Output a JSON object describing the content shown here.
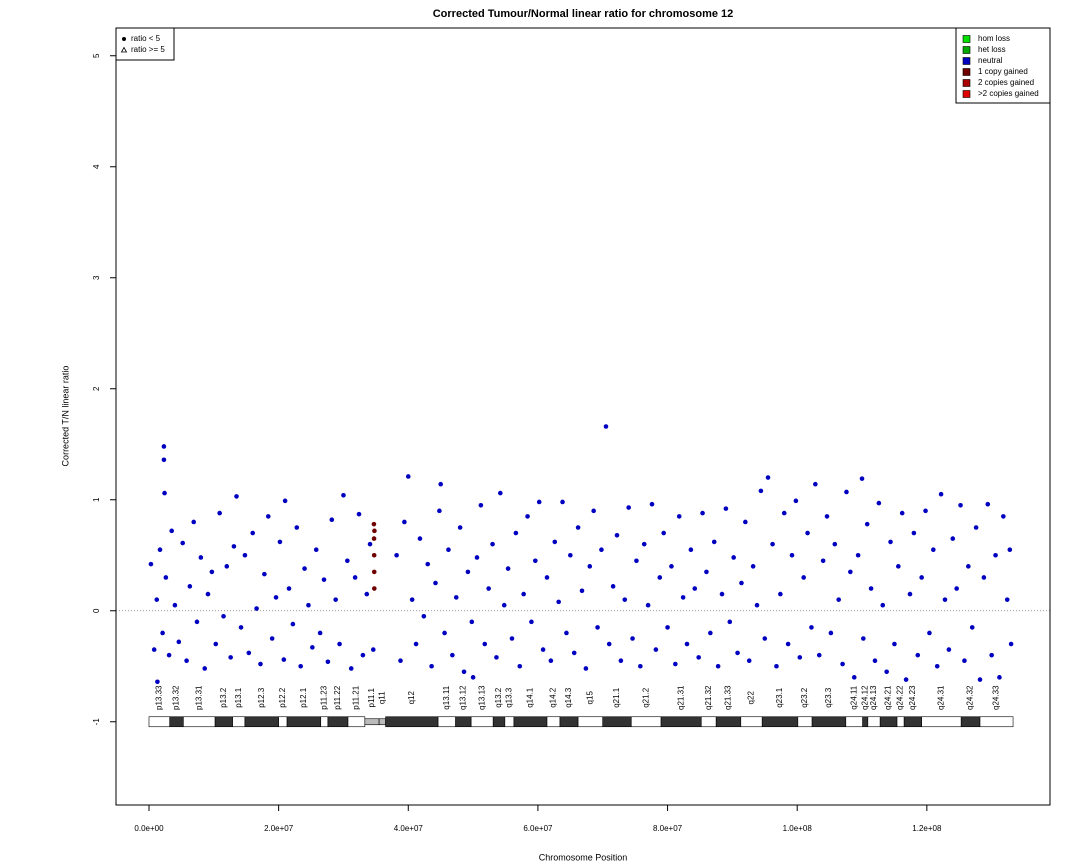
{
  "chart_data": {
    "type": "scatter",
    "title": "Corrected Tumour/Normal linear ratio for chromosome  12",
    "x_label": "Chromosome Position",
    "y_label": "Corrected T/N linear ratio",
    "xlim": [
      -5090000.0,
      139000000.0
    ],
    "ylim": [
      -1.75,
      5.25
    ],
    "xticks": [
      {
        "value": 0,
        "label": "0.0e+00"
      },
      {
        "value": 20000000.0,
        "label": "2.0e+07"
      },
      {
        "value": 40000000.0,
        "label": "4.0e+07"
      },
      {
        "value": 60000000.0,
        "label": "6.0e+07"
      },
      {
        "value": 80000000.0,
        "label": "8.0e+07"
      },
      {
        "value": 100000000.0,
        "label": "1.0e+08"
      },
      {
        "value": 120000000.0,
        "label": "1.2e+08"
      }
    ],
    "yticks": [
      -1,
      0,
      1,
      2,
      3,
      4,
      5
    ],
    "hline": 0,
    "shape_legend": [
      "ratio < 5",
      "ratio >= 5"
    ],
    "series": [
      {
        "name": "hom loss",
        "color": "#00e000",
        "x": [],
        "values": []
      },
      {
        "name": "het loss",
        "color": "#00a800",
        "x": [],
        "values": []
      },
      {
        "name": "neutral",
        "color": "#0000c0",
        "x": [
          300000.0,
          800000.0,
          1200000.0,
          1300000.0,
          1700000.0,
          2100000.0,
          2300000.0,
          2300000.0,
          2400000.0,
          2600000.0,
          3100000.0,
          3500000.0,
          4000000.0,
          4600000.0,
          5200000.0,
          5800000.0,
          6300000.0,
          6900000.0,
          7400000.0,
          8000000.0,
          8600000.0,
          9100000.0,
          9700000.0,
          10300000.0,
          10900000.0,
          11500000.0,
          12000000.0,
          12600000.0,
          13100000.0,
          13500000.0,
          14200000.0,
          14800000.0,
          15400000.0,
          16000000.0,
          16600000.0,
          17200000.0,
          17800000.0,
          18400000.0,
          19000000.0,
          19600000.0,
          20200000.0,
          20800000.0,
          21000000.0,
          21600000.0,
          22200000.0,
          22800000.0,
          23400000.0,
          24000000.0,
          24600000.0,
          25200000.0,
          25800000.0,
          26400000.0,
          27000000.0,
          27600000.0,
          28200000.0,
          28800000.0,
          29400000.0,
          30000000.0,
          30600000.0,
          31200000.0,
          31800000.0,
          32400000.0,
          33000000.0,
          33600000.0,
          34100000.0,
          34600000.0,
          38200000.0,
          38800000.0,
          39400000.0,
          40000000.0,
          40600000.0,
          41200000.0,
          41800000.0,
          42400000.0,
          43000000.0,
          43600000.0,
          44200000.0,
          44800000.0,
          45000000.0,
          45600000.0,
          46200000.0,
          46800000.0,
          47400000.0,
          48000000.0,
          48600000.0,
          49200000.0,
          49800000.0,
          50000000.0,
          50600000.0,
          51200000.0,
          51800000.0,
          52400000.0,
          53000000.0,
          53600000.0,
          54200000.0,
          54800000.0,
          55400000.0,
          56000000.0,
          56600000.0,
          57200000.0,
          57800000.0,
          58400000.0,
          59000000.0,
          59600000.0,
          60200000.0,
          60800000.0,
          61400000.0,
          62000000.0,
          62600000.0,
          63200000.0,
          63800000.0,
          64400000.0,
          65000000.0,
          65600000.0,
          66200000.0,
          66800000.0,
          67400000.0,
          68000000.0,
          68600000.0,
          69200000.0,
          69800000.0,
          70500000.0,
          71000000.0,
          71600000.0,
          72200000.0,
          72800000.0,
          73400000.0,
          74000000.0,
          74600000.0,
          75200000.0,
          75800000.0,
          76400000.0,
          77000000.0,
          77600000.0,
          78200000.0,
          78800000.0,
          79400000.0,
          80000000.0,
          80600000.0,
          81200000.0,
          81800000.0,
          82400000.0,
          83000000.0,
          83600000.0,
          84200000.0,
          84800000.0,
          85400000.0,
          86000000.0,
          86600000.0,
          87200000.0,
          87800000.0,
          88400000.0,
          89000000.0,
          89600000.0,
          90200000.0,
          90800000.0,
          91400000.0,
          92000000.0,
          92600000.0,
          93200000.0,
          93800000.0,
          94400000.0,
          95000000.0,
          95500000.0,
          96200000.0,
          96800000.0,
          97400000.0,
          98000000.0,
          98600000.0,
          99200000.0,
          99800000.0,
          100400000.0,
          101000000.0,
          101600000.0,
          102200000.0,
          102800000.0,
          103400000.0,
          104000000.0,
          104600000.0,
          105200000.0,
          105800000.0,
          106400000.0,
          107000000.0,
          107600000.0,
          108200000.0,
          108800000.0,
          109400000.0,
          110000000.0,
          110200000.0,
          110800000.0,
          111400000.0,
          112000000.0,
          112600000.0,
          113200000.0,
          113800000.0,
          114400000.0,
          115000000.0,
          115600000.0,
          116200000.0,
          116800000.0,
          117400000.0,
          118000000.0,
          118600000.0,
          119200000.0,
          119800000.0,
          120400000.0,
          121000000.0,
          121600000.0,
          122200000.0,
          122800000.0,
          123400000.0,
          124000000.0,
          124600000.0,
          125200000.0,
          125800000.0,
          126400000.0,
          127000000.0,
          127600000.0,
          128200000.0,
          128800000.0,
          129400000.0,
          130000000.0,
          130600000.0,
          131200000.0,
          131800000.0,
          132400000.0,
          133000000.0,
          132800000.0
        ],
        "values": [
          0.42,
          -0.35,
          0.1,
          -0.64,
          0.55,
          -0.2,
          1.48,
          1.36,
          1.06,
          0.3,
          -0.4,
          0.72,
          0.05,
          -0.28,
          0.61,
          -0.45,
          0.22,
          0.8,
          -0.1,
          0.48,
          -0.52,
          0.15,
          0.35,
          -0.3,
          0.88,
          -0.05,
          0.4,
          -0.42,
          0.58,
          1.03,
          -0.15,
          0.5,
          -0.38,
          0.7,
          0.02,
          -0.48,
          0.33,
          0.85,
          -0.25,
          0.12,
          0.62,
          -0.44,
          0.99,
          0.2,
          -0.12,
          0.75,
          -0.5,
          0.38,
          0.05,
          -0.33,
          0.55,
          -0.2,
          0.28,
          -0.46,
          0.82,
          0.1,
          -0.3,
          1.04,
          0.45,
          -0.52,
          0.3,
          0.87,
          -0.4,
          0.15,
          0.6,
          -0.35,
          0.5,
          -0.45,
          0.8,
          1.21,
          0.1,
          -0.3,
          0.65,
          -0.05,
          0.42,
          -0.5,
          0.25,
          0.9,
          1.14,
          -0.2,
          0.55,
          -0.4,
          0.12,
          0.75,
          -0.55,
          0.35,
          -0.1,
          -0.6,
          0.48,
          0.95,
          -0.3,
          0.2,
          0.6,
          -0.42,
          1.06,
          0.05,
          0.38,
          -0.25,
          0.7,
          -0.5,
          0.15,
          0.85,
          -0.1,
          0.45,
          0.98,
          -0.35,
          0.3,
          -0.45,
          0.62,
          0.08,
          0.98,
          -0.2,
          0.5,
          -0.38,
          0.75,
          0.18,
          -0.52,
          0.4,
          0.9,
          -0.15,
          0.55,
          1.66,
          -0.3,
          0.22,
          0.68,
          -0.45,
          0.1,
          0.93,
          -0.25,
          0.45,
          -0.5,
          0.6,
          0.05,
          0.96,
          -0.35,
          0.3,
          0.7,
          -0.15,
          0.4,
          -0.48,
          0.85,
          0.12,
          -0.3,
          0.55,
          0.2,
          -0.42,
          0.88,
          0.35,
          -0.2,
          0.62,
          -0.5,
          0.15,
          0.92,
          -0.1,
          0.48,
          -0.38,
          0.25,
          0.8,
          -0.45,
          0.4,
          0.05,
          1.08,
          -0.25,
          1.2,
          0.6,
          -0.5,
          0.15,
          0.88,
          -0.3,
          0.5,
          0.99,
          -0.42,
          0.3,
          0.7,
          -0.15,
          1.14,
          -0.4,
          0.45,
          0.85,
          -0.2,
          0.6,
          0.1,
          -0.48,
          1.07,
          0.35,
          -0.6,
          0.5,
          1.19,
          -0.25,
          0.78,
          0.2,
          -0.45,
          0.97,
          0.05,
          -0.55,
          0.62,
          -0.3,
          0.4,
          0.88,
          -0.62,
          0.15,
          0.7,
          -0.4,
          0.3,
          0.9,
          -0.2,
          0.55,
          -0.5,
          1.05,
          0.1,
          -0.35,
          0.65,
          0.2,
          0.95,
          -0.45,
          0.4,
          -0.15,
          0.75,
          -0.62,
          0.3,
          0.96,
          -0.4,
          0.5,
          -0.6,
          0.85,
          0.1,
          -0.3,
          0.55
        ]
      },
      {
        "name": "1 copy gained",
        "color": "#700000",
        "x": [
          34700000.0,
          34720000.0,
          34740000.0,
          34750000.0,
          34760000.0,
          34780000.0
        ],
        "values": [
          0.78,
          0.65,
          0.5,
          0.35,
          0.2,
          0.72
        ]
      },
      {
        "name": "2 copies gained",
        "color": "#a80000",
        "x": [],
        "values": []
      },
      {
        "name": ">2 copies gained",
        "color": "#e00000",
        "x": [],
        "values": []
      }
    ],
    "ideogram": [
      {
        "name": "p13.33",
        "start": 0,
        "end": 3200000.0,
        "color": "#ffffff"
      },
      {
        "name": "p13.32",
        "start": 3200000.0,
        "end": 5300000.0,
        "color": "#333333"
      },
      {
        "name": "p13.31",
        "start": 5300000.0,
        "end": 10200000.0,
        "color": "#ffffff"
      },
      {
        "name": "p13.2",
        "start": 10200000.0,
        "end": 12900000.0,
        "color": "#333333"
      },
      {
        "name": "p13.1",
        "start": 12900000.0,
        "end": 14800000.0,
        "color": "#ffffff"
      },
      {
        "name": "p12.3",
        "start": 14800000.0,
        "end": 20000000.0,
        "color": "#333333"
      },
      {
        "name": "p12.2",
        "start": 20000000.0,
        "end": 21300000.0,
        "color": "#ffffff"
      },
      {
        "name": "p12.1",
        "start": 21300000.0,
        "end": 26500000.0,
        "color": "#333333"
      },
      {
        "name": "p11.23",
        "start": 26500000.0,
        "end": 27600000.0,
        "color": "#ffffff"
      },
      {
        "name": "p11.22",
        "start": 27600000.0,
        "end": 30700000.0,
        "color": "#333333"
      },
      {
        "name": "p11.21",
        "start": 30700000.0,
        "end": 33300000.0,
        "color": "#ffffff"
      },
      {
        "name": "p11.1",
        "start": 33300000.0,
        "end": 35500000.0,
        "color": "#bbbbbb"
      },
      {
        "name": "q11",
        "start": 35500000.0,
        "end": 36500000.0,
        "color": "#bbbbbb"
      },
      {
        "name": "q12",
        "start": 36500000.0,
        "end": 44600000.0,
        "color": "#333333"
      },
      {
        "name": "q13.11",
        "start": 44600000.0,
        "end": 47300000.0,
        "color": "#ffffff"
      },
      {
        "name": "q13.12",
        "start": 47300000.0,
        "end": 49700000.0,
        "color": "#333333"
      },
      {
        "name": "q13.13",
        "start": 49700000.0,
        "end": 53100000.0,
        "color": "#ffffff"
      },
      {
        "name": "q13.2",
        "start": 53100000.0,
        "end": 54900000.0,
        "color": "#333333"
      },
      {
        "name": "q13.3",
        "start": 54900000.0,
        "end": 56300000.0,
        "color": "#ffffff"
      },
      {
        "name": "q14.1",
        "start": 56300000.0,
        "end": 61400000.0,
        "color": "#333333"
      },
      {
        "name": "q14.2",
        "start": 61400000.0,
        "end": 63400000.0,
        "color": "#ffffff"
      },
      {
        "name": "q14.3",
        "start": 63400000.0,
        "end": 66200000.0,
        "color": "#333333"
      },
      {
        "name": "q15",
        "start": 66200000.0,
        "end": 70000000.0,
        "color": "#ffffff"
      },
      {
        "name": "q21.1",
        "start": 70000000.0,
        "end": 74400000.0,
        "color": "#333333"
      },
      {
        "name": "q21.2",
        "start": 74400000.0,
        "end": 79000000.0,
        "color": "#ffffff"
      },
      {
        "name": "q21.31",
        "start": 79000000.0,
        "end": 85200000.0,
        "color": "#333333"
      },
      {
        "name": "q21.32",
        "start": 85200000.0,
        "end": 87500000.0,
        "color": "#ffffff"
      },
      {
        "name": "q21.33",
        "start": 87500000.0,
        "end": 91300000.0,
        "color": "#333333"
      },
      {
        "name": "q22",
        "start": 91300000.0,
        "end": 94600000.0,
        "color": "#ffffff"
      },
      {
        "name": "q23.1",
        "start": 94600000.0,
        "end": 100100000.0,
        "color": "#333333"
      },
      {
        "name": "q23.2",
        "start": 100100000.0,
        "end": 102300000.0,
        "color": "#ffffff"
      },
      {
        "name": "q23.3",
        "start": 102300000.0,
        "end": 107500000.0,
        "color": "#333333"
      },
      {
        "name": "q24.11",
        "start": 107500000.0,
        "end": 110100000.0,
        "color": "#ffffff"
      },
      {
        "name": "q24.12",
        "start": 110100000.0,
        "end": 110900000.0,
        "color": "#333333"
      },
      {
        "name": "q24.13",
        "start": 110900000.0,
        "end": 112800000.0,
        "color": "#ffffff"
      },
      {
        "name": "q24.21",
        "start": 112800000.0,
        "end": 115400000.0,
        "color": "#333333"
      },
      {
        "name": "q24.22",
        "start": 115400000.0,
        "end": 116500000.0,
        "color": "#ffffff"
      },
      {
        "name": "q24.23",
        "start": 116500000.0,
        "end": 119200000.0,
        "color": "#333333"
      },
      {
        "name": "q24.31",
        "start": 119200000.0,
        "end": 125300000.0,
        "color": "#ffffff"
      },
      {
        "name": "q24.32",
        "start": 125300000.0,
        "end": 128200000.0,
        "color": "#333333"
      },
      {
        "name": "q24.33",
        "start": 128200000.0,
        "end": 133300000.0,
        "color": "#ffffff"
      }
    ]
  }
}
